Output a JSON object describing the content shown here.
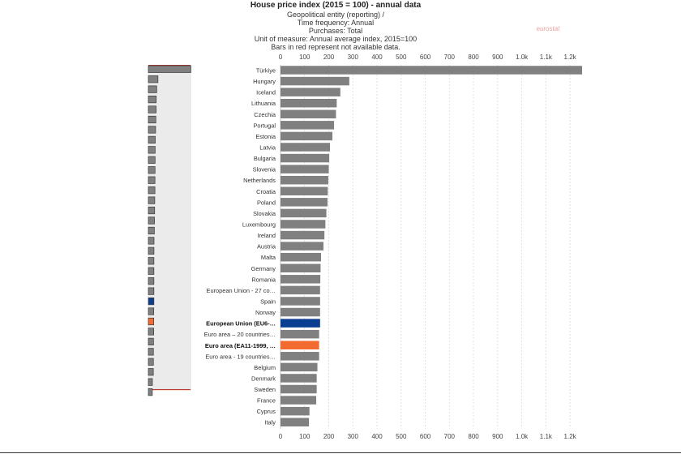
{
  "chart_data": {
    "type": "bar",
    "orientation": "horizontal",
    "title": "House price index (2015 = 100) - annual data",
    "subtitle_lines": [
      "Geopolitical entity (reporting) /",
      "Time frequency: Annual",
      "Purchases: Total",
      "Unit of measure: Annual average index, 2015=100",
      "Bars in red represent not available data."
    ],
    "watermark": "eurostat",
    "xlim": [
      0,
      1250
    ],
    "ticks": [
      0,
      100,
      200,
      300,
      400,
      500,
      600,
      700,
      800,
      900,
      1000,
      1100,
      1200
    ],
    "tick_labels": [
      "0",
      "100",
      "200",
      "300",
      "400",
      "500",
      "600",
      "700",
      "800",
      "900",
      "1.0k",
      "1.1k",
      "1.2k"
    ],
    "grid": true,
    "colors": {
      "default": "#808080",
      "highlight_blue": "#0b3d91",
      "highlight_orange": "#f46b31",
      "not_available": "#d62728",
      "overview_panel": "#ebebeb"
    },
    "categories": [
      "Türkiye",
      "Hungary",
      "Iceland",
      "Lithuania",
      "Czechia",
      "Portugal",
      "Estonia",
      "Latvia",
      "Bulgaria",
      "Slovenia",
      "Netherlands",
      "Croatia",
      "Poland",
      "Slovakia",
      "Luxembourg",
      "Ireland",
      "Austria",
      "Malta",
      "Germany",
      "Romania",
      "European Union - 27 co…",
      "Spain",
      "Norway",
      "European Union (EU6-…",
      "Euro area – 20 countries…",
      "Euro area (EA11-1999, …",
      "Euro area - 19 countries…",
      "Belgium",
      "Denmark",
      "Sweden",
      "France",
      "Cyprus",
      "Italy"
    ],
    "values": [
      1260,
      285,
      248,
      233,
      230,
      222,
      215,
      205,
      202,
      200,
      198,
      196,
      195,
      190,
      186,
      182,
      178,
      168,
      166,
      165,
      164,
      164,
      164,
      164,
      160,
      160,
      160,
      153,
      150,
      150,
      148,
      120,
      118
    ],
    "bold_categories": [
      "European Union (EU6-…",
      "Euro area (EA11-1999, …"
    ],
    "highlight": {
      "European Union (EU6-…": "blue",
      "Euro area (EA11-1999, …": "orange"
    }
  }
}
